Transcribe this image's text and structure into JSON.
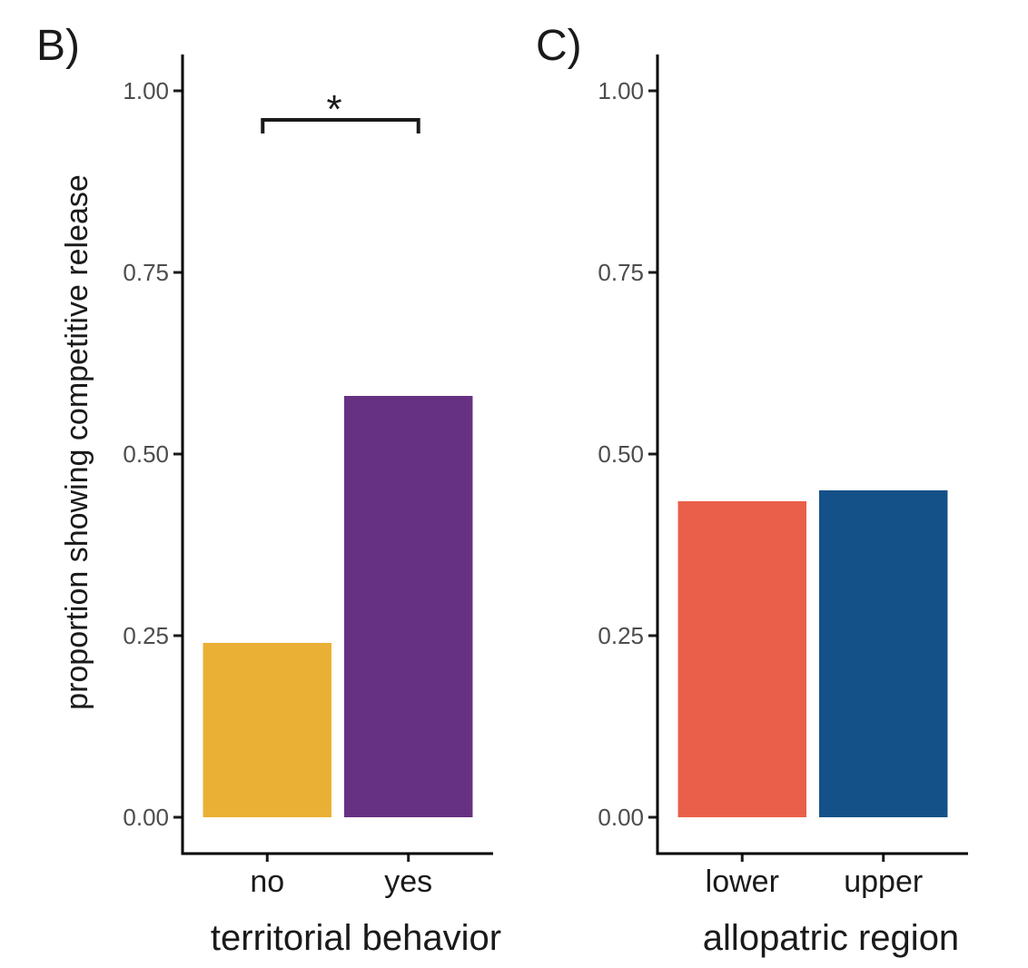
{
  "ylabel": "proportion showing competitive release",
  "chart_data": [
    {
      "type": "bar",
      "panel_label": "B)",
      "xlabel": "territorial behavior",
      "categories": [
        "no",
        "yes"
      ],
      "values": [
        0.24,
        0.58
      ],
      "colors": [
        "#EAB035",
        "#663182"
      ],
      "ylim": [
        -0.05,
        1.05
      ],
      "yticks": [
        "0.00",
        "0.25",
        "0.50",
        "0.75",
        "1.00"
      ],
      "significance": {
        "label": "*",
        "from": "no",
        "to": "yes",
        "y": 0.96
      },
      "grid": false
    },
    {
      "type": "bar",
      "panel_label": "C)",
      "xlabel": "allopatric region",
      "categories": [
        "lower",
        "upper"
      ],
      "values": [
        0.435,
        0.45
      ],
      "colors": [
        "#E95F4A",
        "#145189"
      ],
      "ylim": [
        -0.05,
        1.05
      ],
      "yticks": [
        "0.00",
        "0.25",
        "0.50",
        "0.75",
        "1.00"
      ],
      "significance": null,
      "grid": false
    }
  ]
}
